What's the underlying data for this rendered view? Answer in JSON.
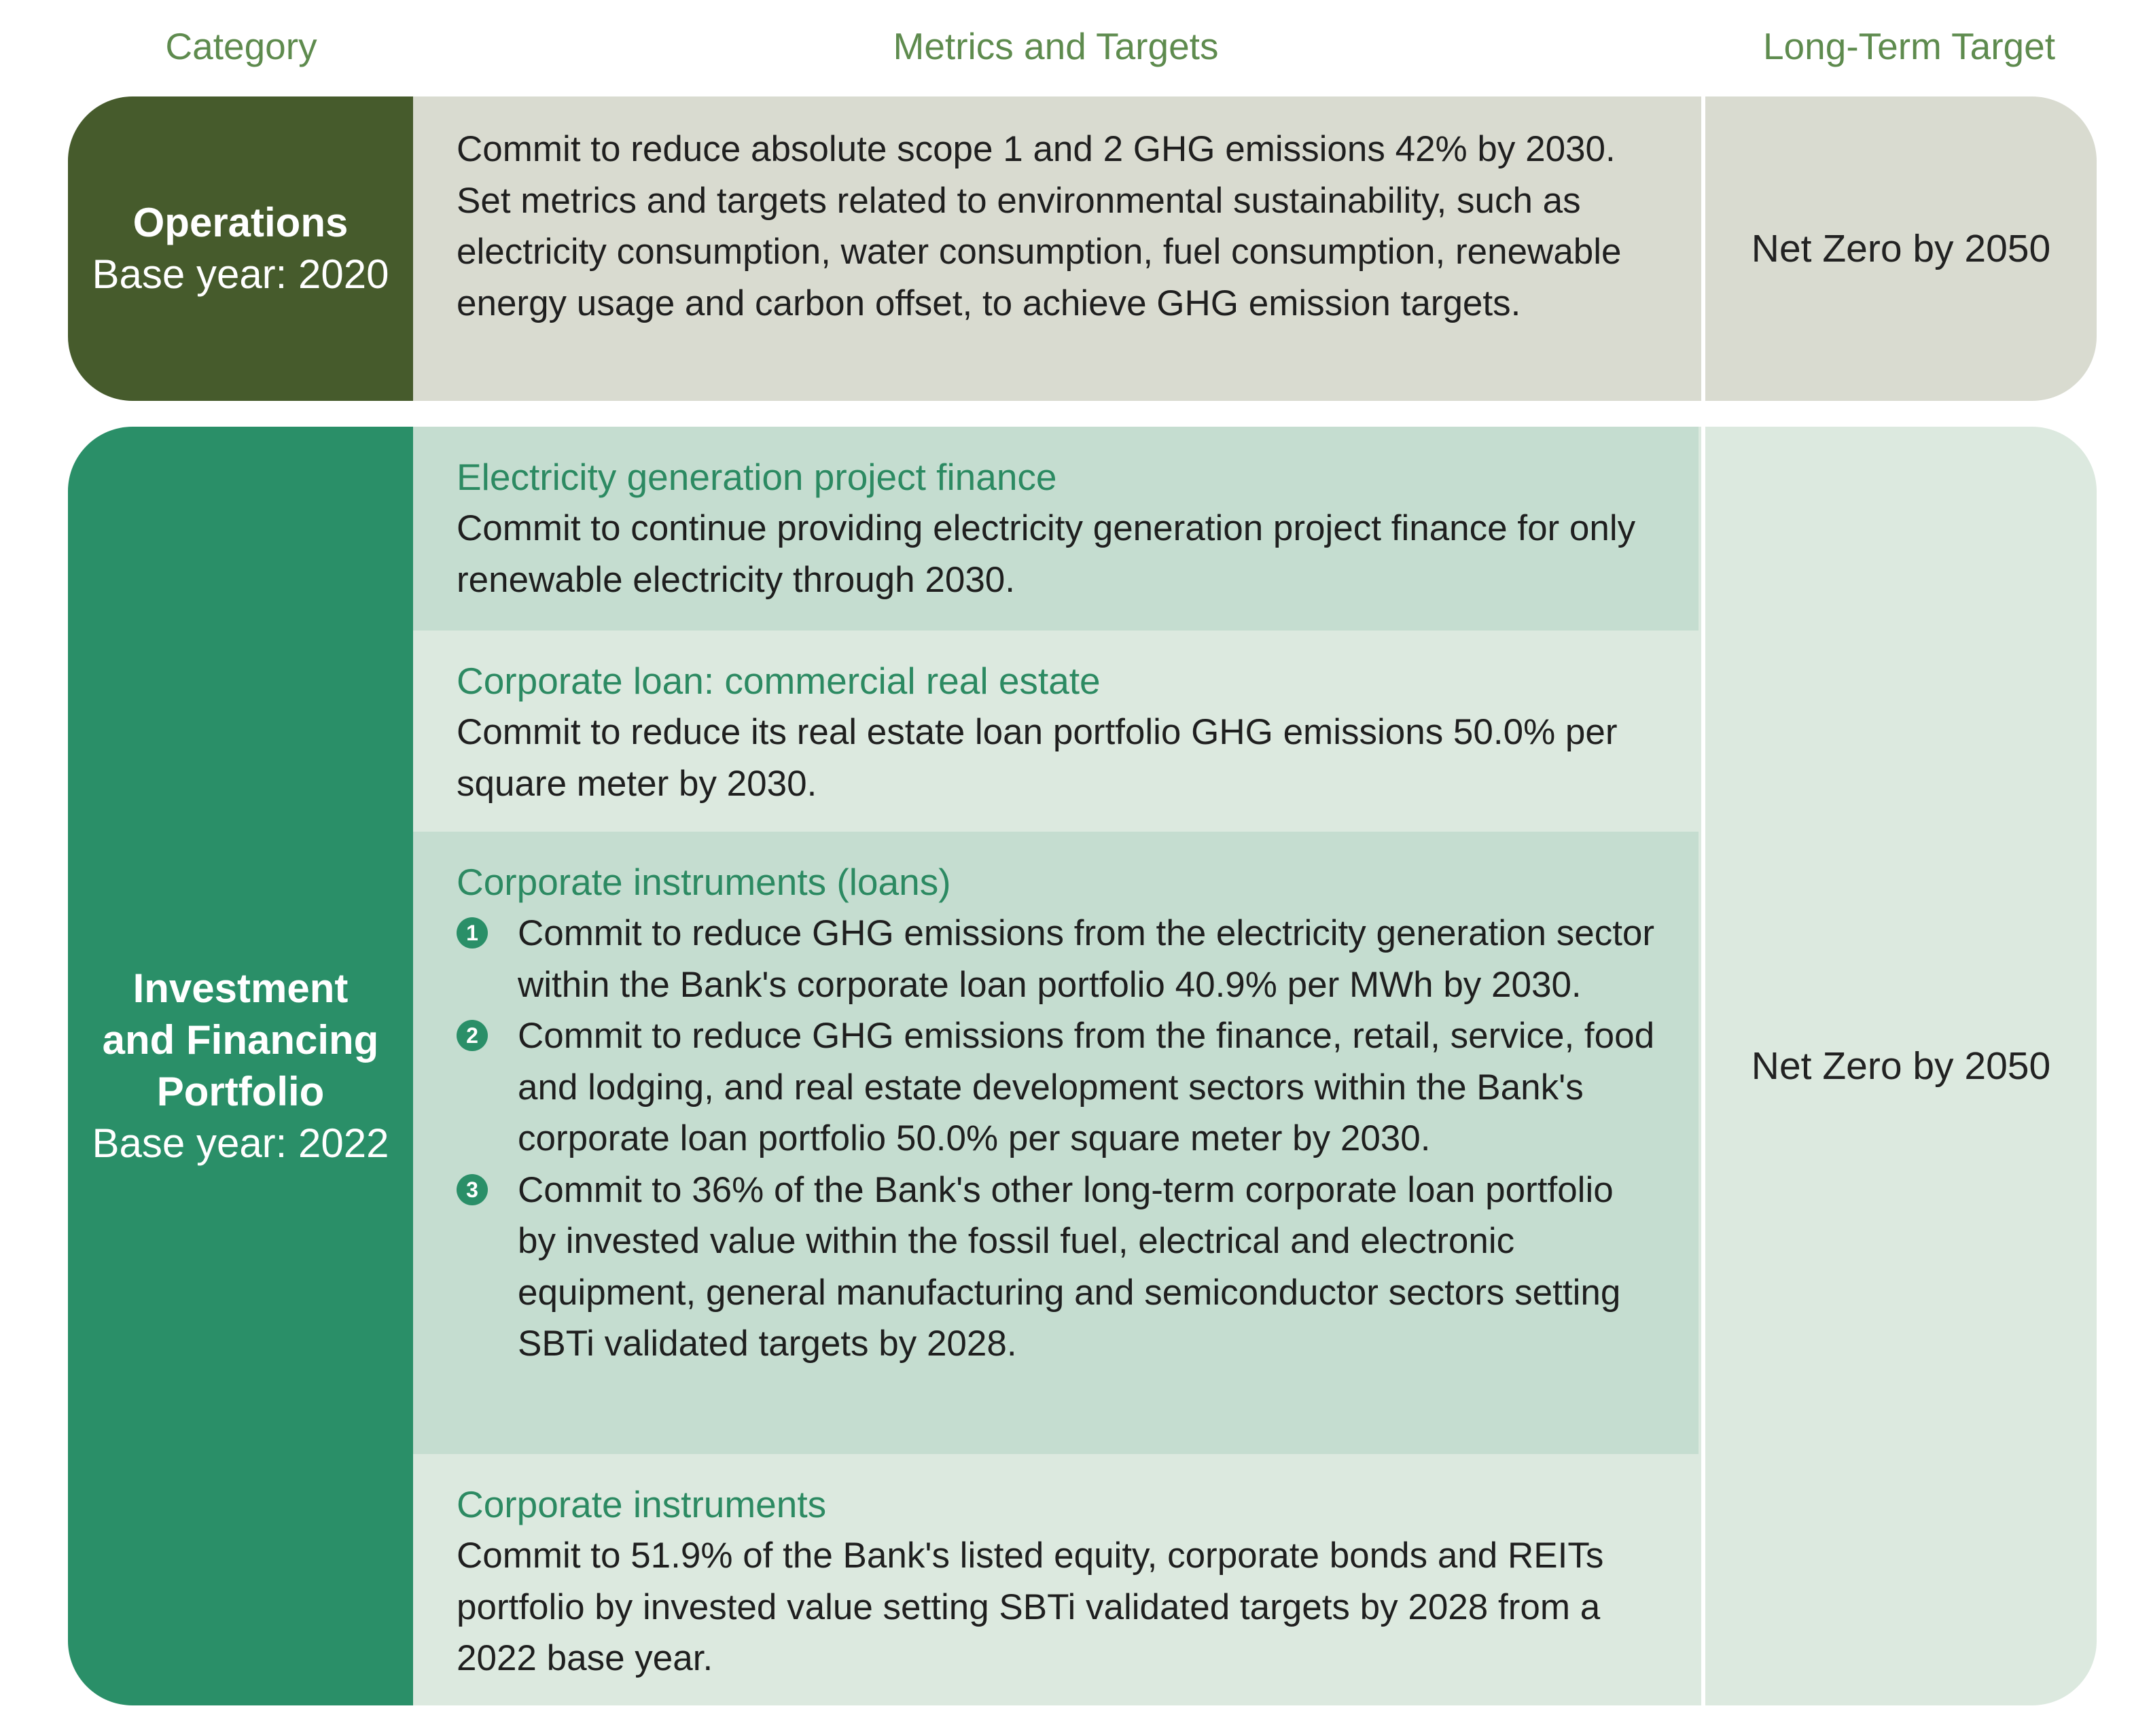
{
  "header": {
    "category": "Category",
    "metrics": "Metrics and Targets",
    "long_term": "Long-Term Target"
  },
  "operations": {
    "name": "Operations",
    "base_year": "Base year: 2020",
    "text": "Commit to reduce absolute scope 1 and 2 GHG emissions 42% by 2030. Set metrics and targets related to environmental sustainability, such as electricity consumption, water consumption, fuel consumption, renewable energy usage and carbon offset, to achieve GHG emission targets.",
    "long_term": "Net Zero by 2050"
  },
  "investment": {
    "name_line1": "Investment",
    "name_line2": "and Financing",
    "name_line3": "Portfolio",
    "base_year": "Base year: 2022",
    "long_term": "Net Zero by 2050",
    "sections": [
      {
        "title": "Electricity generation project finance",
        "text": "Commit to continue providing electricity generation project finance for only renewable electricity through 2030."
      },
      {
        "title": "Corporate loan: commercial real estate",
        "text": "Commit to reduce its real estate loan portfolio GHG emissions 50.0% per square meter by 2030."
      },
      {
        "title": "Corporate instruments (loans)",
        "items": [
          {
            "num": "1",
            "text": "Commit to reduce GHG emissions from the electricity generation sector within the Bank's corporate loan portfolio 40.9% per MWh by 2030."
          },
          {
            "num": "2",
            "text": "Commit to reduce GHG emissions from the finance, retail, service, food and lodging, and real estate development sectors within the Bank's corporate loan portfolio 50.0% per square meter by 2030."
          },
          {
            "num": "3",
            "text": "Commit to 36% of the Bank's other long-term corporate loan portfolio by invested value within the fossil fuel, electrical and electronic equipment, general manufacturing and semiconductor sectors setting SBTi validated targets by 2028."
          }
        ]
      },
      {
        "title": "Corporate instruments",
        "text": "Commit to 51.9% of the Bank's listed equity, corporate bonds and REITs portfolio by invested value setting SBTi validated targets by 2028 from a 2022 base year."
      }
    ]
  }
}
